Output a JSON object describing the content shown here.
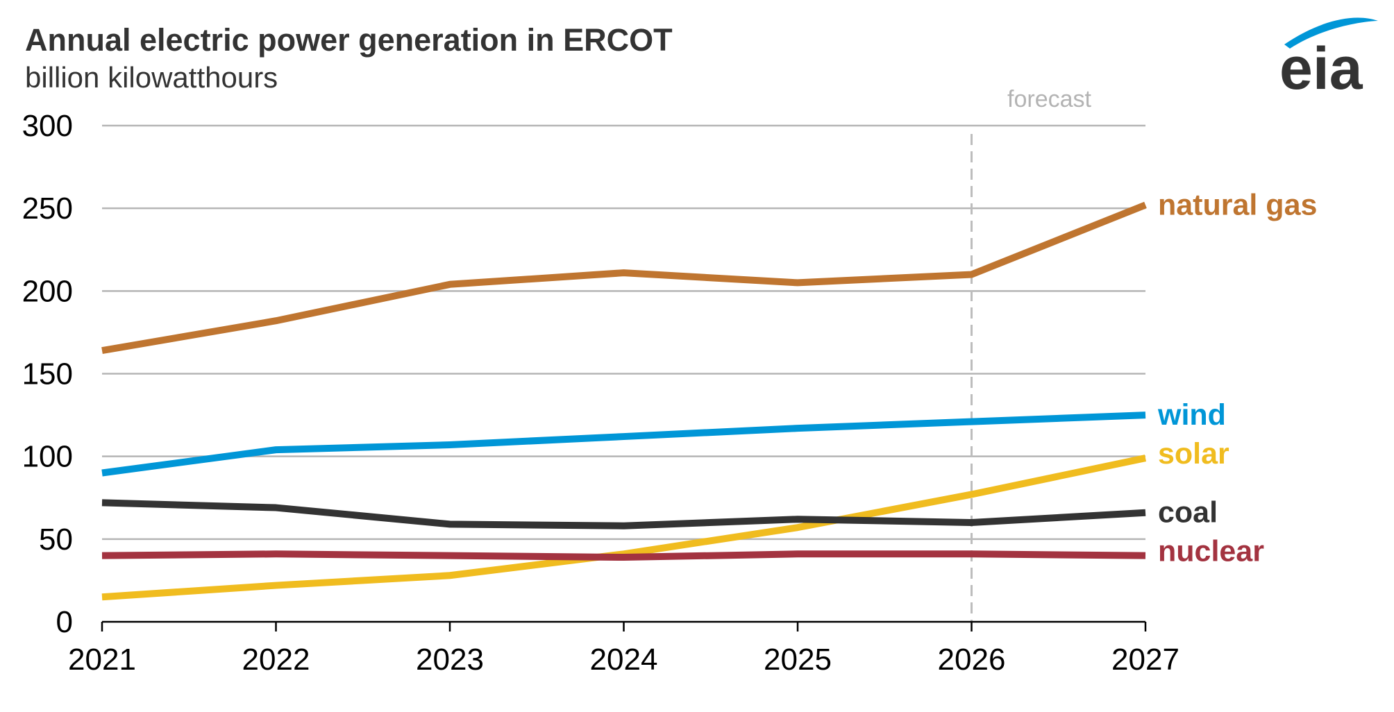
{
  "chart_data": {
    "type": "line",
    "title": "Annual electric power generation in ERCOT",
    "subtitle": "billion kilowatthours",
    "x": [
      2021,
      2022,
      2023,
      2024,
      2025,
      2026,
      2027
    ],
    "xlim": [
      2021,
      2027
    ],
    "ylim": [
      0,
      300
    ],
    "yticks": [
      0,
      50,
      100,
      150,
      200,
      250,
      300
    ],
    "grid": true,
    "legend": "direct labels at right end of lines",
    "annotation": {
      "text": "forecast",
      "x": 2026
    },
    "series": [
      {
        "name": "natural gas",
        "color": "#bf7530",
        "values": [
          164,
          182,
          204,
          211,
          205,
          210,
          252
        ]
      },
      {
        "name": "wind",
        "color": "#0096d7",
        "values": [
          90,
          104,
          107,
          112,
          117,
          121,
          125
        ]
      },
      {
        "name": "solar",
        "color": "#f0bc1f",
        "values": [
          15,
          22,
          28,
          41,
          57,
          77,
          99
        ]
      },
      {
        "name": "coal",
        "color": "#333333",
        "values": [
          72,
          69,
          59,
          58,
          62,
          60,
          66
        ]
      },
      {
        "name": "nuclear",
        "color": "#a33340",
        "values": [
          40,
          41,
          40,
          39,
          41,
          41,
          40
        ]
      }
    ]
  },
  "logo": {
    "text": "eia",
    "icon": "eia-swoosh-icon",
    "color": "#0096d7"
  }
}
